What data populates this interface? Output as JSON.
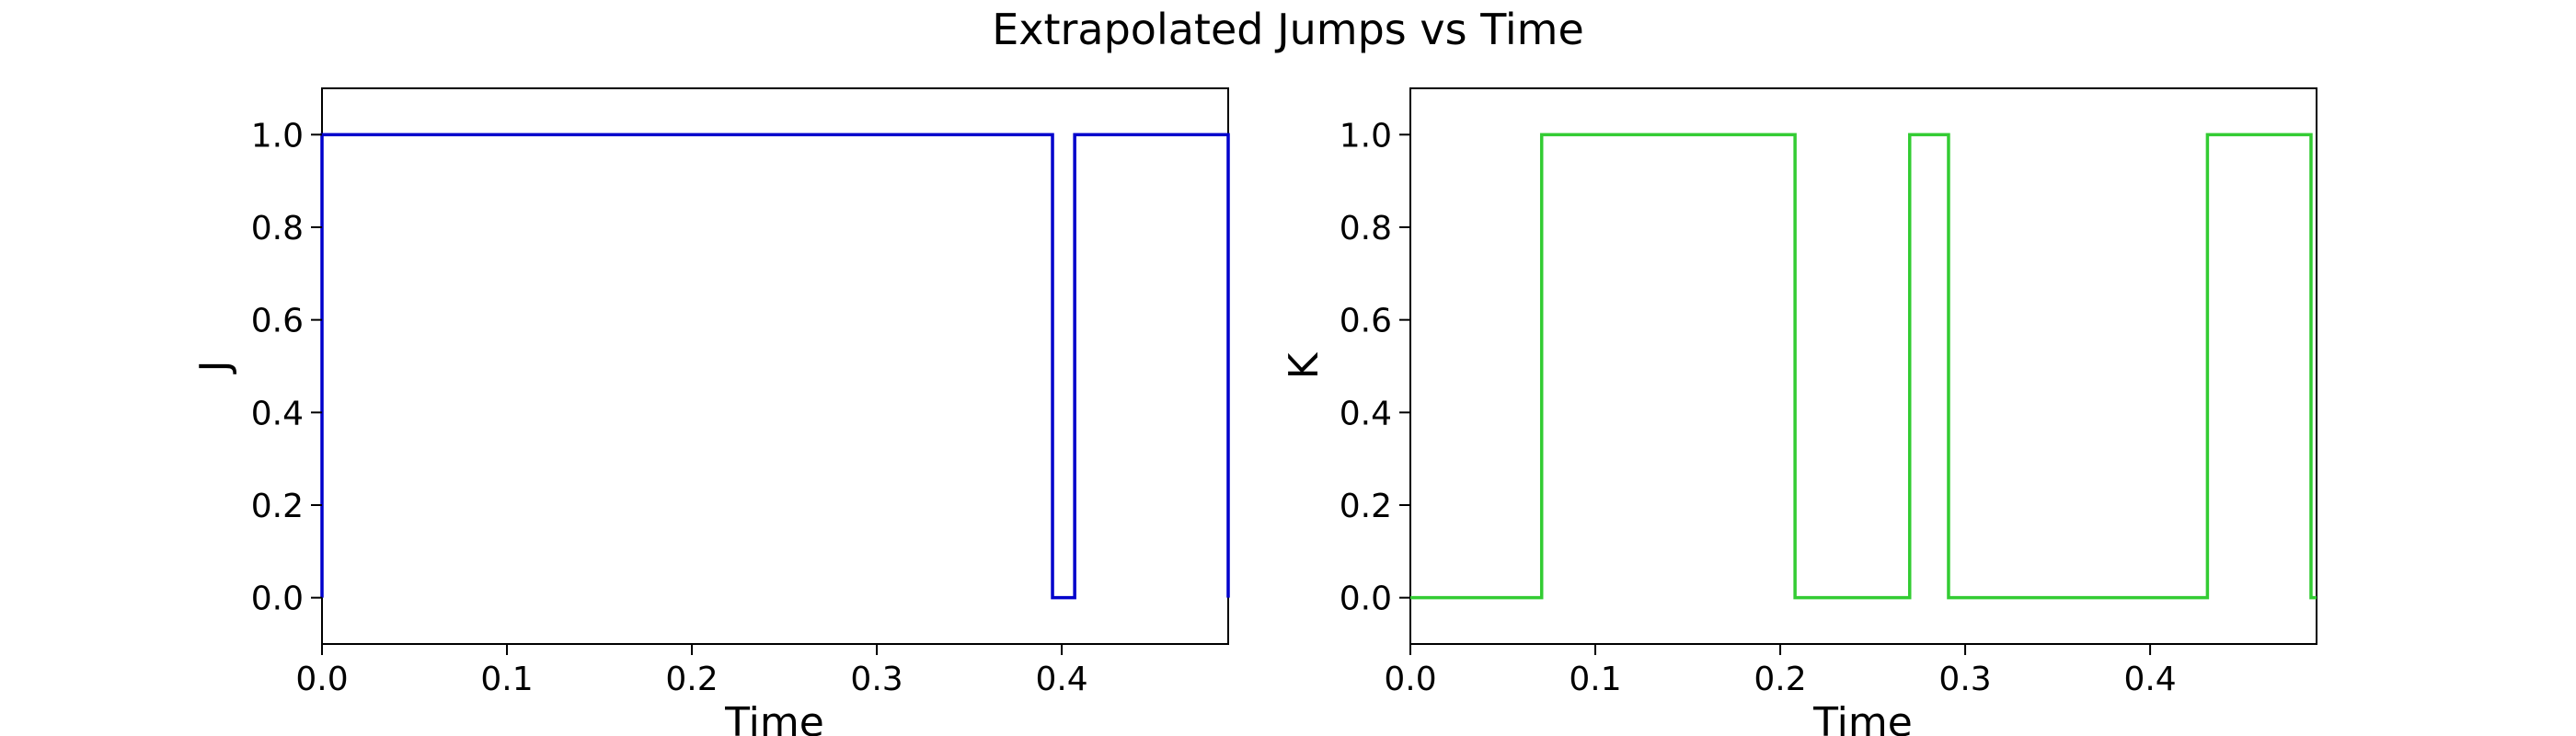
{
  "figure": {
    "title": "Extrapolated Jumps vs Time"
  },
  "chart_data": [
    {
      "type": "line",
      "step": "post",
      "xlabel": "Time",
      "ylabel": "J",
      "xlim": [
        0.0,
        0.49
      ],
      "ylim": [
        -0.1,
        1.1
      ],
      "x_ticks": [
        0.0,
        0.1,
        0.2,
        0.3,
        0.4
      ],
      "x_tick_labels": [
        "0.0",
        "0.1",
        "0.2",
        "0.3",
        "0.4"
      ],
      "y_ticks": [
        0.0,
        0.2,
        0.4,
        0.6,
        0.8,
        1.0
      ],
      "y_tick_labels": [
        "0.0",
        "0.2",
        "0.4",
        "0.6",
        "0.8",
        "1.0"
      ],
      "grid": false,
      "color": "#0000cc",
      "x": [
        0.0,
        0.0,
        0.395,
        0.407,
        0.49
      ],
      "y": [
        0,
        1,
        0,
        1,
        0
      ]
    },
    {
      "type": "line",
      "step": "post",
      "xlabel": "Time",
      "ylabel": "K",
      "xlim": [
        0.0,
        0.49
      ],
      "ylim": [
        -0.1,
        1.1
      ],
      "x_ticks": [
        0.0,
        0.1,
        0.2,
        0.3,
        0.4
      ],
      "x_tick_labels": [
        "0.0",
        "0.1",
        "0.2",
        "0.3",
        "0.4"
      ],
      "y_ticks": [
        0.0,
        0.2,
        0.4,
        0.6,
        0.8,
        1.0
      ],
      "y_tick_labels": [
        "0.0",
        "0.2",
        "0.4",
        "0.6",
        "0.8",
        "1.0"
      ],
      "grid": false,
      "color": "#33cc33",
      "x": [
        0.0,
        0.071,
        0.208,
        0.27,
        0.291,
        0.431,
        0.487,
        0.49
      ],
      "y": [
        0,
        1,
        0,
        1,
        0,
        1,
        0,
        0
      ]
    }
  ]
}
